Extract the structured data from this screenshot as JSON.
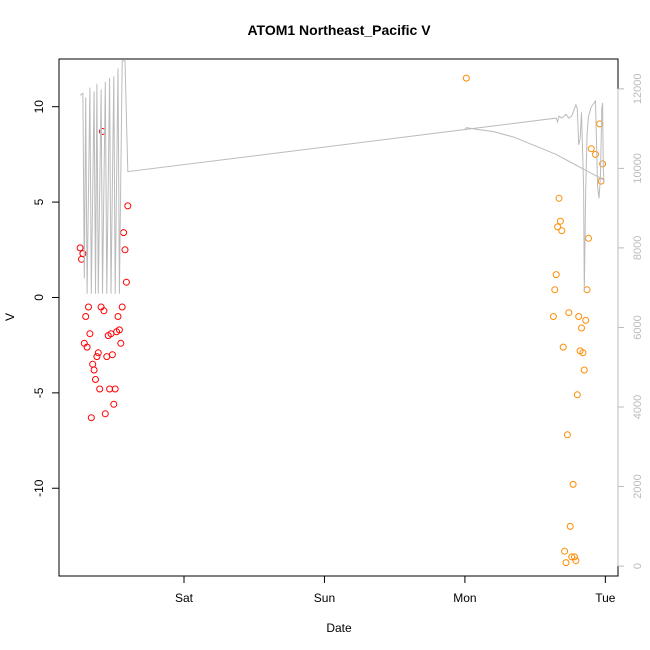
{
  "chart_data": {
    "type": "scatter",
    "title": "ATOM1 Northeast_Pacific V",
    "xlabel": "Date",
    "ylabel": "V",
    "x_ticks": [
      "Sat",
      "Sun",
      "Mon",
      "Tue"
    ],
    "x_tick_positions": [
      0,
      1,
      2,
      3
    ],
    "xlim": [
      -0.89,
      3.09
    ],
    "ylim": [
      -14.6,
      12.5
    ],
    "y_ticks": [
      -10,
      -5,
      0,
      5,
      10
    ],
    "y2_ticks": [
      0,
      2000,
      4000,
      6000,
      8000,
      10000,
      12000
    ],
    "y2lim": [
      -250,
      12750
    ],
    "grid": false,
    "series": [
      {
        "color": "#ff0000",
        "marker": "open-circle",
        "points": [
          [
            -0.74,
            2.6
          ],
          [
            -0.73,
            2.0
          ],
          [
            -0.72,
            2.3
          ],
          [
            -0.71,
            -2.4
          ],
          [
            -0.7,
            -1.0
          ],
          [
            -0.69,
            -2.6
          ],
          [
            -0.68,
            -0.5
          ],
          [
            -0.67,
            -1.9
          ],
          [
            -0.66,
            -6.3
          ],
          [
            -0.65,
            -3.5
          ],
          [
            -0.64,
            -3.8
          ],
          [
            -0.63,
            -4.3
          ],
          [
            -0.62,
            -3.1
          ],
          [
            -0.61,
            -2.9
          ],
          [
            -0.6,
            -4.8
          ],
          [
            -0.59,
            -0.5
          ],
          [
            -0.58,
            8.7
          ],
          [
            -0.57,
            -0.7
          ],
          [
            -0.56,
            -6.1
          ],
          [
            -0.55,
            -3.1
          ],
          [
            -0.54,
            -2.0
          ],
          [
            -0.53,
            -4.8
          ],
          [
            -0.52,
            -1.9
          ],
          [
            -0.51,
            -3.0
          ],
          [
            -0.5,
            -5.6
          ],
          [
            -0.49,
            -4.8
          ],
          [
            -0.48,
            -1.8
          ],
          [
            -0.47,
            -1.0
          ],
          [
            -0.46,
            -1.7
          ],
          [
            -0.45,
            -2.4
          ],
          [
            -0.44,
            -0.5
          ],
          [
            -0.43,
            3.4
          ],
          [
            -0.42,
            2.5
          ],
          [
            -0.41,
            0.8
          ],
          [
            -0.4,
            4.8
          ]
        ]
      },
      {
        "color": "#ff8c00",
        "marker": "open-circle",
        "points": [
          [
            2.01,
            11.5
          ],
          [
            2.63,
            -1.0
          ],
          [
            2.64,
            0.4
          ],
          [
            2.65,
            1.2
          ],
          [
            2.66,
            3.7
          ],
          [
            2.67,
            5.2
          ],
          [
            2.68,
            4.0
          ],
          [
            2.69,
            3.5
          ],
          [
            2.7,
            -2.6
          ],
          [
            2.71,
            -13.3
          ],
          [
            2.72,
            -13.9
          ],
          [
            2.73,
            -7.2
          ],
          [
            2.74,
            -0.8
          ],
          [
            2.75,
            -12.0
          ],
          [
            2.76,
            -13.6
          ],
          [
            2.77,
            -9.8
          ],
          [
            2.78,
            -13.6
          ],
          [
            2.79,
            -13.8
          ],
          [
            2.8,
            -5.1
          ],
          [
            2.81,
            -1.0
          ],
          [
            2.82,
            -2.8
          ],
          [
            2.83,
            -1.6
          ],
          [
            2.84,
            -2.9
          ],
          [
            2.85,
            -3.8
          ],
          [
            2.86,
            -1.2
          ],
          [
            2.87,
            0.4
          ],
          [
            2.88,
            3.1
          ],
          [
            2.9,
            7.8
          ],
          [
            2.93,
            7.5
          ],
          [
            2.96,
            9.1
          ],
          [
            2.97,
            6.1
          ],
          [
            2.98,
            7.0
          ]
        ]
      },
      {
        "color": "#bbbbbb",
        "kind": "line",
        "axis": "right",
        "points": [
          [
            -0.74,
            10.6
          ],
          [
            -0.72,
            10.7
          ],
          [
            -0.71,
            1.0
          ],
          [
            -0.7,
            10.5
          ],
          [
            -0.69,
            0.2
          ],
          [
            -0.67,
            11.0
          ],
          [
            -0.66,
            0.2
          ],
          [
            -0.64,
            10.8
          ],
          [
            -0.63,
            0.2
          ],
          [
            -0.62,
            11.2
          ],
          [
            -0.61,
            0.2
          ],
          [
            -0.59,
            10.9
          ],
          [
            -0.58,
            0.2
          ],
          [
            -0.56,
            11.3
          ],
          [
            -0.55,
            0.2
          ],
          [
            -0.53,
            11.5
          ],
          [
            -0.52,
            0.2
          ],
          [
            -0.5,
            11.6
          ],
          [
            -0.49,
            0.2
          ],
          [
            -0.47,
            12.0
          ],
          [
            -0.46,
            0.2
          ],
          [
            -0.44,
            12.4
          ],
          [
            -0.43,
            12.4
          ],
          [
            -0.42,
            12.4
          ],
          [
            -0.4,
            6.6
          ],
          [
            2.65,
            9.4
          ],
          [
            2.66,
            9.2
          ],
          [
            2.67,
            9.5
          ],
          [
            2.69,
            9.4
          ],
          [
            2.72,
            9.6
          ],
          [
            2.74,
            9.4
          ],
          [
            2.76,
            9.5
          ],
          [
            2.78,
            9.9
          ],
          [
            2.79,
            10.1
          ],
          [
            2.8,
            9.9
          ],
          [
            2.81,
            8.0
          ],
          [
            2.82,
            8.3
          ],
          [
            2.83,
            9.7
          ],
          [
            2.835,
            8.4
          ],
          [
            2.845,
            5.8
          ],
          [
            2.85,
            0.3
          ],
          [
            2.86,
            5.6
          ],
          [
            2.87,
            8.6
          ],
          [
            2.88,
            9.5
          ],
          [
            2.9,
            10.0
          ],
          [
            2.93,
            10.3
          ],
          [
            2.945,
            5.8
          ],
          [
            2.955,
            5.2
          ],
          [
            2.965,
            6.3
          ],
          [
            2.975,
            9.9
          ],
          [
            2.98,
            10.2
          ],
          [
            2.985,
            6.7
          ],
          [
            2.99,
            6.1
          ],
          [
            2.98,
            6.2
          ],
          [
            2.93,
            6.4
          ],
          [
            2.85,
            6.7
          ],
          [
            2.75,
            7.1
          ],
          [
            2.65,
            7.5
          ],
          [
            2.55,
            7.8
          ],
          [
            2.45,
            8.1
          ],
          [
            2.35,
            8.4
          ],
          [
            2.2,
            8.7
          ],
          [
            2.1,
            8.8
          ],
          [
            2.01,
            8.9
          ],
          [
            2.0,
            8.8
          ]
        ]
      }
    ]
  }
}
